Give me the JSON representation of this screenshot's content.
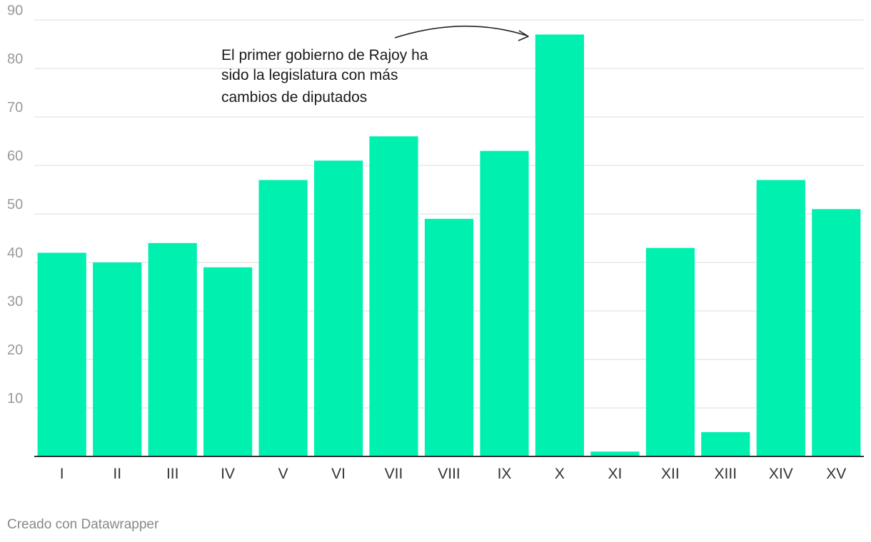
{
  "chart_data": {
    "type": "bar",
    "categories": [
      "I",
      "II",
      "III",
      "IV",
      "V",
      "VI",
      "VII",
      "VIII",
      "IX",
      "X",
      "XI",
      "XII",
      "XIII",
      "XIV",
      "XV"
    ],
    "values": [
      42,
      40,
      44,
      39,
      57,
      61,
      66,
      49,
      63,
      87,
      1,
      43,
      5,
      57,
      51
    ],
    "ylim": [
      0,
      90
    ],
    "yticks": [
      10,
      20,
      30,
      40,
      50,
      60,
      70,
      80,
      90
    ],
    "grid": true,
    "title": "",
    "xlabel": "",
    "ylabel": "",
    "bar_color": "#00f0b0",
    "annotation": {
      "lines": [
        "El primer gobierno de Rajoy ha",
        "sido la legislatura con más",
        "cambios de diputados"
      ],
      "target_category": "X"
    }
  },
  "footer": {
    "credit": "Creado con Datawrapper"
  }
}
